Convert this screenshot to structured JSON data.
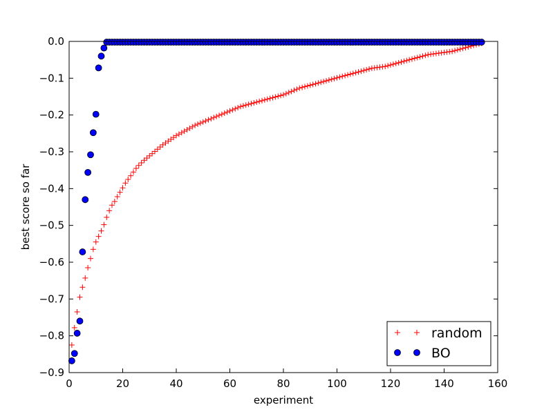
{
  "chart_data": {
    "type": "scatter",
    "xlabel": "experiment",
    "ylabel": "best score so far",
    "xlim": [
      0,
      160
    ],
    "ylim": [
      -0.9,
      0.0
    ],
    "xticks": [
      "0",
      "20",
      "40",
      "60",
      "80",
      "100",
      "120",
      "140",
      "160"
    ],
    "yticks": [
      "0.0",
      "−0.1",
      "−0.2",
      "−0.3",
      "−0.4",
      "−0.5",
      "−0.6",
      "−0.7",
      "−0.8",
      "−0.9"
    ],
    "grid": false,
    "legend_position": "lower-right",
    "series": [
      {
        "name": "random",
        "marker": "plus",
        "color": "#ff0000",
        "x": [
          1,
          2,
          3,
          4,
          5,
          6,
          7,
          8,
          9,
          10,
          11,
          12,
          13,
          14,
          15,
          16,
          17,
          18,
          19,
          20,
          21,
          22,
          23,
          24,
          25,
          26,
          27,
          28,
          29,
          30,
          31,
          32,
          33,
          34,
          35,
          36,
          37,
          38,
          39,
          40,
          41,
          42,
          43,
          44,
          45,
          46,
          47,
          48,
          49,
          50,
          51,
          52,
          53,
          54,
          55,
          56,
          57,
          58,
          59,
          60,
          61,
          62,
          63,
          64,
          65,
          66,
          67,
          68,
          69,
          70,
          71,
          72,
          73,
          74,
          75,
          76,
          77,
          78,
          79,
          80,
          81,
          82,
          83,
          84,
          85,
          86,
          87,
          88,
          89,
          90,
          91,
          92,
          93,
          94,
          95,
          96,
          97,
          98,
          99,
          100,
          101,
          102,
          103,
          104,
          105,
          106,
          107,
          108,
          109,
          110,
          111,
          112,
          113,
          114,
          115,
          116,
          117,
          118,
          119,
          120,
          121,
          122,
          123,
          124,
          125,
          126,
          127,
          128,
          129,
          130,
          131,
          132,
          133,
          134,
          135,
          136,
          137,
          138,
          139,
          140,
          141,
          142,
          143,
          144,
          145,
          146,
          147,
          148,
          149,
          150,
          151,
          152,
          153,
          154
        ],
        "y": [
          -0.825,
          -0.778,
          -0.735,
          -0.695,
          -0.668,
          -0.643,
          -0.615,
          -0.59,
          -0.565,
          -0.545,
          -0.53,
          -0.515,
          -0.498,
          -0.478,
          -0.46,
          -0.445,
          -0.435,
          -0.422,
          -0.41,
          -0.398,
          -0.385,
          -0.375,
          -0.365,
          -0.355,
          -0.345,
          -0.337,
          -0.33,
          -0.323,
          -0.317,
          -0.311,
          -0.305,
          -0.299,
          -0.293,
          -0.287,
          -0.281,
          -0.276,
          -0.271,
          -0.266,
          -0.261,
          -0.256,
          -0.252,
          -0.248,
          -0.244,
          -0.24,
          -0.236,
          -0.232,
          -0.228,
          -0.225,
          -0.222,
          -0.219,
          -0.216,
          -0.213,
          -0.21,
          -0.207,
          -0.204,
          -0.201,
          -0.198,
          -0.195,
          -0.192,
          -0.189,
          -0.186,
          -0.183,
          -0.18,
          -0.177,
          -0.175,
          -0.173,
          -0.171,
          -0.169,
          -0.167,
          -0.165,
          -0.163,
          -0.161,
          -0.159,
          -0.157,
          -0.155,
          -0.153,
          -0.151,
          -0.149,
          -0.147,
          -0.145,
          -0.142,
          -0.139,
          -0.136,
          -0.133,
          -0.13,
          -0.127,
          -0.125,
          -0.123,
          -0.121,
          -0.119,
          -0.117,
          -0.115,
          -0.113,
          -0.111,
          -0.109,
          -0.107,
          -0.105,
          -0.103,
          -0.101,
          -0.099,
          -0.097,
          -0.095,
          -0.093,
          -0.091,
          -0.089,
          -0.087,
          -0.085,
          -0.083,
          -0.081,
          -0.079,
          -0.077,
          -0.075,
          -0.073,
          -0.072,
          -0.071,
          -0.07,
          -0.069,
          -0.068,
          -0.066,
          -0.064,
          -0.062,
          -0.06,
          -0.058,
          -0.056,
          -0.054,
          -0.052,
          -0.05,
          -0.048,
          -0.046,
          -0.044,
          -0.042,
          -0.04,
          -0.038,
          -0.036,
          -0.035,
          -0.034,
          -0.033,
          -0.032,
          -0.031,
          -0.03,
          -0.029,
          -0.028,
          -0.027,
          -0.025,
          -0.023,
          -0.021,
          -0.019,
          -0.017,
          -0.015,
          -0.013,
          -0.011,
          -0.009,
          -0.007,
          -0.005
        ]
      },
      {
        "name": "BO",
        "marker": "circle",
        "color": "#0000ff",
        "x": [
          1,
          2,
          3,
          4,
          5,
          6,
          7,
          8,
          9,
          10,
          11,
          12,
          13,
          14,
          15,
          16,
          17,
          18,
          19,
          20,
          21,
          22,
          23,
          24,
          25,
          26,
          27,
          28,
          29,
          30,
          31,
          32,
          33,
          34,
          35,
          36,
          37,
          38,
          39,
          40,
          41,
          42,
          43,
          44,
          45,
          46,
          47,
          48,
          49,
          50,
          51,
          52,
          53,
          54,
          55,
          56,
          57,
          58,
          59,
          60,
          61,
          62,
          63,
          64,
          65,
          66,
          67,
          68,
          69,
          70,
          71,
          72,
          73,
          74,
          75,
          76,
          77,
          78,
          79,
          80,
          81,
          82,
          83,
          84,
          85,
          86,
          87,
          88,
          89,
          90,
          91,
          92,
          93,
          94,
          95,
          96,
          97,
          98,
          99,
          100,
          101,
          102,
          103,
          104,
          105,
          106,
          107,
          108,
          109,
          110,
          111,
          112,
          113,
          114,
          115,
          116,
          117,
          118,
          119,
          120,
          121,
          122,
          123,
          124,
          125,
          126,
          127,
          128,
          129,
          130,
          131,
          132,
          133,
          134,
          135,
          136,
          137,
          138,
          139,
          140,
          141,
          142,
          143,
          144,
          145,
          146,
          147,
          148,
          149,
          150,
          151,
          152,
          153,
          154
        ],
        "y": [
          -0.868,
          -0.848,
          -0.793,
          -0.76,
          -0.572,
          -0.43,
          -0.356,
          -0.308,
          -0.248,
          -0.198,
          -0.072,
          -0.04,
          -0.018,
          -0.002,
          -0.002,
          -0.002,
          -0.002,
          -0.002,
          -0.002,
          -0.002,
          -0.002,
          -0.002,
          -0.002,
          -0.002,
          -0.002,
          -0.002,
          -0.002,
          -0.002,
          -0.002,
          -0.002,
          -0.002,
          -0.002,
          -0.002,
          -0.002,
          -0.002,
          -0.002,
          -0.002,
          -0.002,
          -0.002,
          -0.002,
          -0.002,
          -0.002,
          -0.002,
          -0.002,
          -0.002,
          -0.002,
          -0.002,
          -0.002,
          -0.002,
          -0.002,
          -0.002,
          -0.002,
          -0.002,
          -0.002,
          -0.002,
          -0.002,
          -0.002,
          -0.002,
          -0.002,
          -0.002,
          -0.002,
          -0.002,
          -0.002,
          -0.002,
          -0.002,
          -0.002,
          -0.002,
          -0.002,
          -0.002,
          -0.002,
          -0.002,
          -0.002,
          -0.002,
          -0.002,
          -0.002,
          -0.002,
          -0.002,
          -0.002,
          -0.002,
          -0.002,
          -0.002,
          -0.002,
          -0.002,
          -0.002,
          -0.002,
          -0.002,
          -0.002,
          -0.002,
          -0.002,
          -0.002,
          -0.002,
          -0.002,
          -0.002,
          -0.002,
          -0.002,
          -0.002,
          -0.002,
          -0.002,
          -0.002,
          -0.002,
          -0.002,
          -0.002,
          -0.002,
          -0.002,
          -0.002,
          -0.002,
          -0.002,
          -0.002,
          -0.002,
          -0.002,
          -0.002,
          -0.002,
          -0.002,
          -0.002,
          -0.002,
          -0.002,
          -0.002,
          -0.002,
          -0.002,
          -0.002,
          -0.002,
          -0.002,
          -0.002,
          -0.002,
          -0.002,
          -0.002,
          -0.002,
          -0.002,
          -0.002,
          -0.002,
          -0.002,
          -0.002,
          -0.002,
          -0.002,
          -0.002,
          -0.002,
          -0.002,
          -0.002,
          -0.002,
          -0.002,
          -0.002,
          -0.002,
          -0.002,
          -0.002,
          -0.002,
          -0.002,
          -0.002,
          -0.002,
          -0.002,
          -0.002,
          -0.002,
          -0.002,
          -0.002,
          -0.002
        ]
      }
    ]
  }
}
